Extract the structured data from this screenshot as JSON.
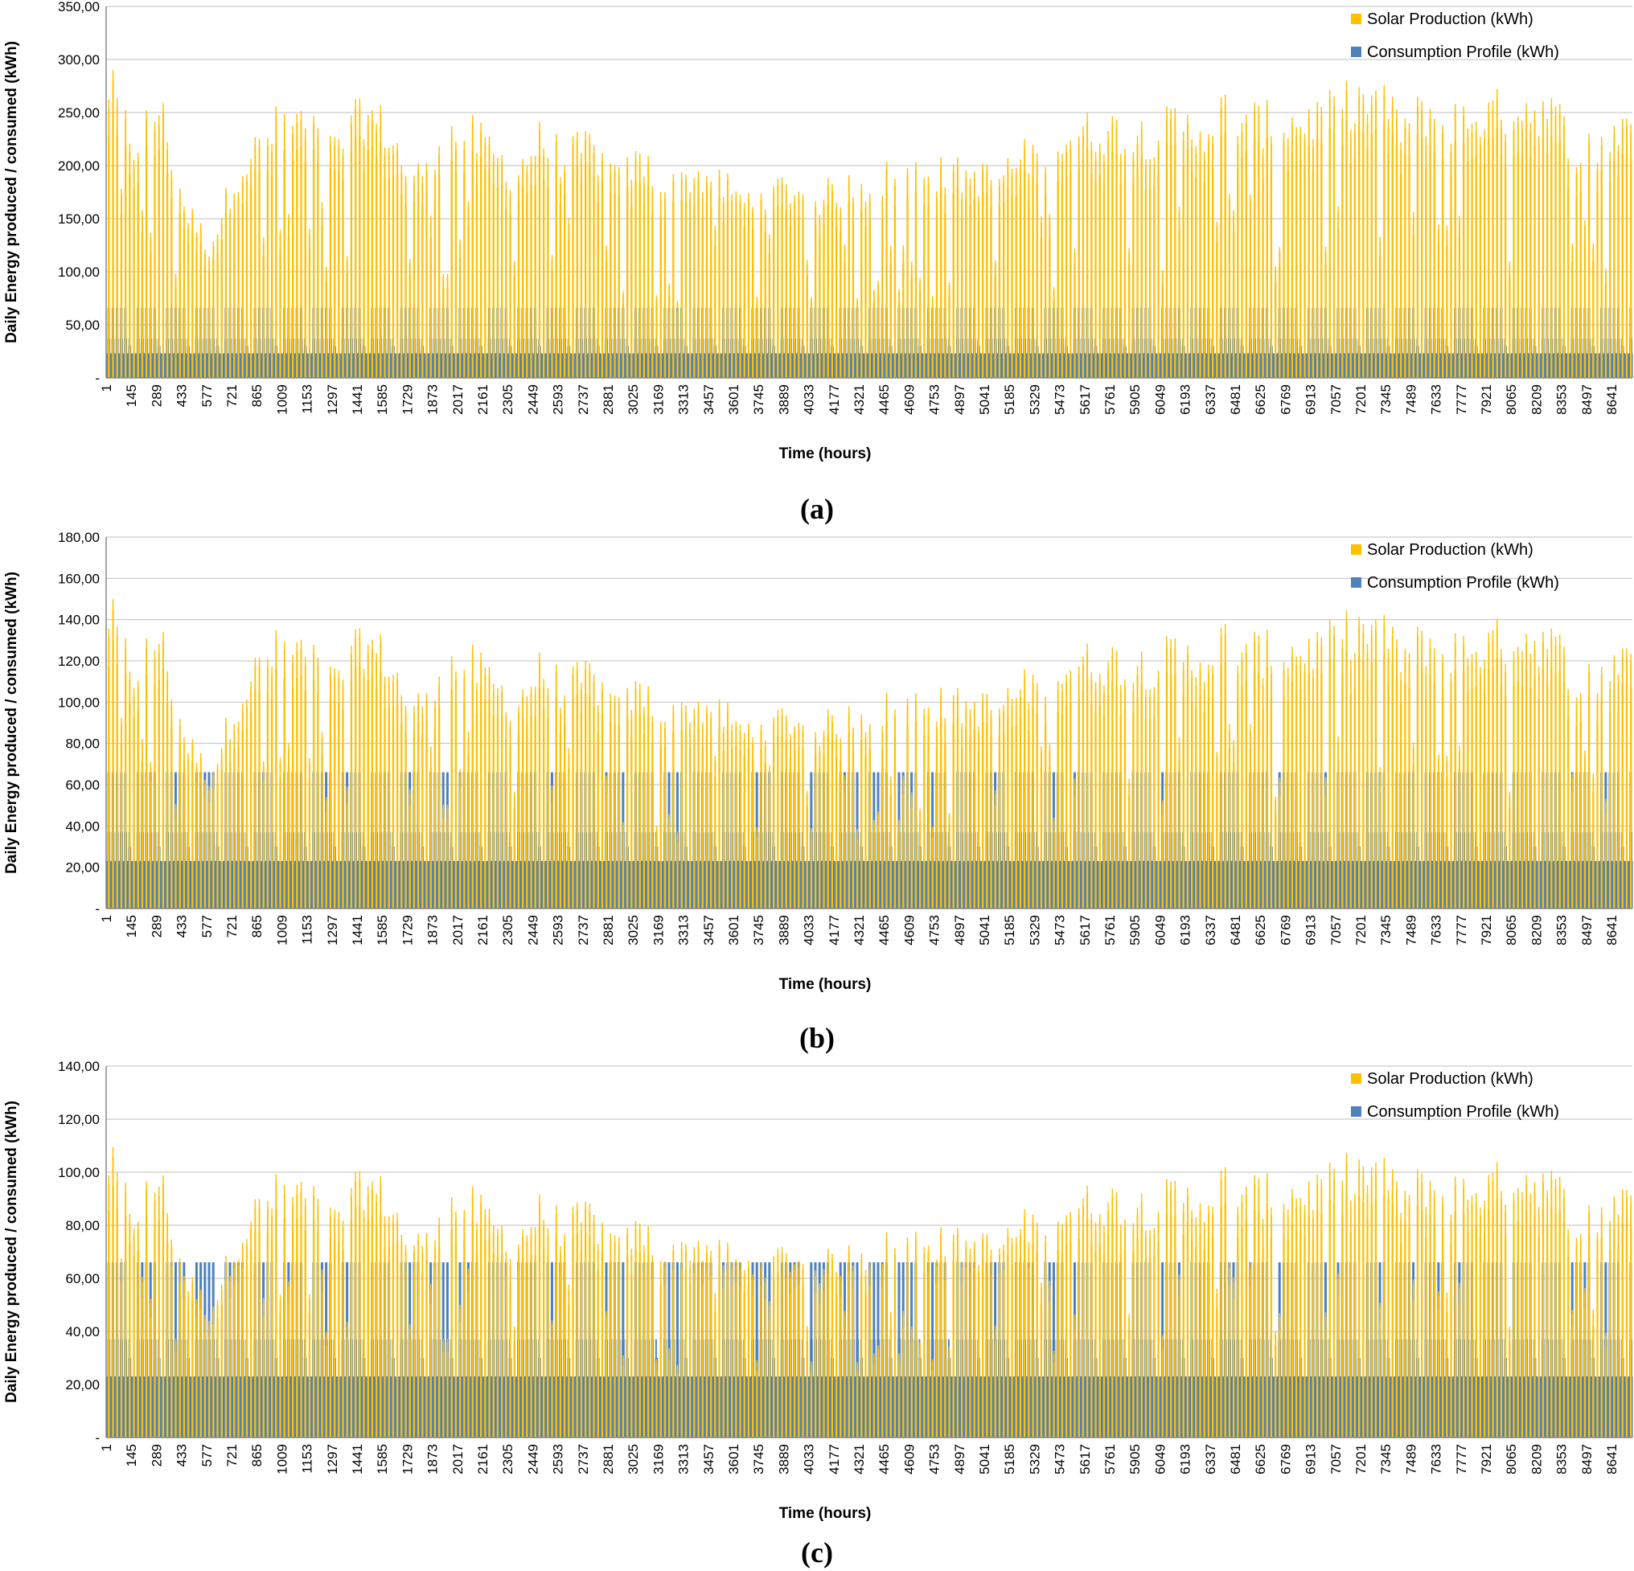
{
  "colors": {
    "solar": "#FFC000",
    "consumption": "#4F81BD",
    "gridline": "#BFBFBF",
    "axis": "#868686"
  },
  "x_tick_labels": [
    "1",
    "145",
    "289",
    "433",
    "577",
    "721",
    "865",
    "1009",
    "1153",
    "1297",
    "1441",
    "1585",
    "1729",
    "1873",
    "2017",
    "2161",
    "2305",
    "2449",
    "2593",
    "2737",
    "2881",
    "3025",
    "3169",
    "3313",
    "3457",
    "3601",
    "3745",
    "3889",
    "4033",
    "4177",
    "4321",
    "4465",
    "4609",
    "4753",
    "4897",
    "5041",
    "5185",
    "5329",
    "5473",
    "5617",
    "5761",
    "5905",
    "6049",
    "6193",
    "6337",
    "6481",
    "6625",
    "6769",
    "6913",
    "7057",
    "7201",
    "7345",
    "7489",
    "7633",
    "7777",
    "7921",
    "8065",
    "8209",
    "8353",
    "8497",
    "8641"
  ],
  "consumption_profile": {
    "weekday_daily_kwh": [
      23,
      23,
      23,
      23,
      23,
      23,
      23,
      37,
      66,
      66,
      66,
      66,
      66,
      66,
      66,
      66,
      66,
      66,
      66,
      37,
      37,
      23,
      23,
      23
    ],
    "saturday_daily_kwh": [
      23,
      23,
      23,
      23,
      23,
      23,
      23,
      30,
      37,
      37,
      37,
      37,
      37,
      37,
      30,
      30,
      30,
      30,
      30,
      30,
      30,
      23,
      23,
      23
    ],
    "sunday_daily_kwh": [
      23,
      23,
      23,
      23,
      23,
      23,
      23,
      23,
      23,
      23,
      23,
      23,
      23,
      23,
      23,
      23,
      23,
      23,
      23,
      23,
      23,
      23,
      23,
      23
    ]
  },
  "chart_data": [
    {
      "type": "bar",
      "panel_label": "(a)",
      "xlabel": "Time (hours)",
      "ylabel": "Daily Energy produced / consumed (kWh)",
      "ylim": [
        0,
        350
      ],
      "yticks": [
        "-",
        "50,00",
        "100,00",
        "150,00",
        "200,00",
        "250,00",
        "300,00",
        "350,00"
      ],
      "legend": [
        "Solar Production (kWh)",
        "Consumption Profile (kWh)"
      ],
      "legend_position": "top-right",
      "grid": "horizontal",
      "x_hours": [
        1,
        8760
      ],
      "series": [
        {
          "name": "Solar Production (kWh)",
          "daily_peak_envelope_kwh": [
            300,
            240,
            280,
            175,
            135,
            210,
            240,
            270,
            255,
            230,
            275,
            255,
            200,
            245,
            255,
            235,
            210,
            245,
            225,
            240,
            200,
            225,
            190,
            210,
            205,
            180,
            195,
            195,
            185,
            195,
            200,
            210,
            212,
            210,
            208,
            205,
            225,
            240,
            250,
            255,
            255,
            250,
            260,
            255,
            275,
            265,
            260,
            265,
            270,
            285,
            285,
            260,
            275,
            265,
            270,
            275,
            280,
            270,
            235,
            240,
            275
          ]
        },
        {
          "name": "Consumption Profile (kWh)",
          "daily_peak_kwh": 66
        }
      ]
    },
    {
      "type": "bar",
      "panel_label": "(b)",
      "xlabel": "Time (hours)",
      "ylabel": "Daily Energy produced / consumed (kWh)",
      "ylim": [
        0,
        180
      ],
      "yticks": [
        "-",
        "20,00",
        "40,00",
        "60,00",
        "80,00",
        "100,00",
        "120,00",
        "140,00",
        "160,00",
        "180,00"
      ],
      "legend": [
        "Solar Production (kWh)",
        "Consumption Profile (kWh)"
      ],
      "legend_position": "top-right",
      "grid": "horizontal",
      "x_hours": [
        1,
        8760
      ],
      "series": [
        {
          "name": "Solar Production (kWh)",
          "daily_peak_envelope_kwh": [
            155,
            125,
            145,
            90,
            70,
            108,
            130,
            140,
            132,
            118,
            142,
            132,
            103,
            126,
            132,
            121,
            108,
            126,
            116,
            124,
            103,
            116,
            98,
            108,
            106,
            93,
            100,
            100,
            95,
            100,
            103,
            108,
            109,
            108,
            107,
            106,
            116,
            124,
            129,
            131,
            131,
            129,
            134,
            131,
            142,
            137,
            134,
            137,
            139,
            147,
            147,
            134,
            142,
            137,
            139,
            142,
            144,
            139,
            121,
            124,
            142
          ]
        },
        {
          "name": "Consumption Profile (kWh)",
          "daily_peak_kwh": 66
        }
      ]
    },
    {
      "type": "bar",
      "panel_label": "(c)",
      "xlabel": "Time (hours)",
      "ylabel": "Daily Energy produced / consumed (kWh)",
      "ylim": [
        0,
        140
      ],
      "yticks": [
        "-",
        "20,00",
        "40,00",
        "60,00",
        "80,00",
        "100,00",
        "120,00",
        "140,00"
      ],
      "legend": [
        "Solar Production (kWh)",
        "Consumption Profile (kWh)"
      ],
      "legend_position": "top-right",
      "grid": "horizontal",
      "x_hours": [
        1,
        8760
      ],
      "series": [
        {
          "name": "Solar Production (kWh)",
          "daily_peak_envelope_kwh": [
            113,
            92,
            107,
            66,
            52,
            80,
            96,
            103,
            98,
            87,
            105,
            98,
            76,
            93,
            98,
            89,
            80,
            93,
            86,
            92,
            76,
            86,
            72,
            80,
            78,
            69,
            74,
            74,
            70,
            74,
            76,
            80,
            81,
            80,
            79,
            78,
            86,
            92,
            95,
            97,
            97,
            95,
            99,
            97,
            105,
            101,
            99,
            101,
            103,
            109,
            109,
            99,
            105,
            101,
            103,
            105,
            107,
            103,
            89,
            92,
            105
          ]
        },
        {
          "name": "Consumption Profile (kWh)",
          "daily_peak_kwh": 66
        }
      ]
    }
  ]
}
